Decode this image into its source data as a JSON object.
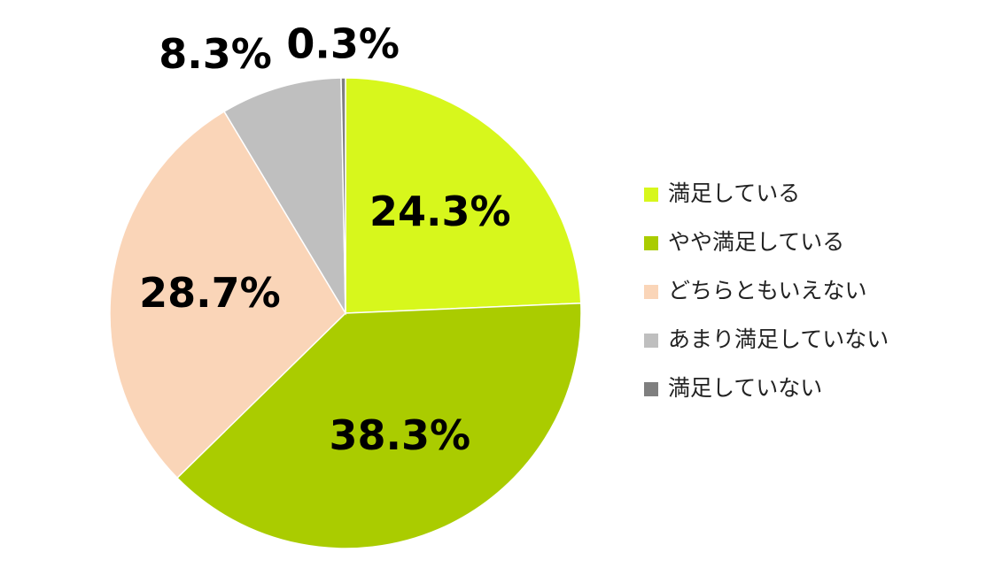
{
  "chart_data": {
    "type": "pie",
    "categories": [
      "満足している",
      "やや満足している",
      "どちらともいえない",
      "あまり満足していない",
      "満足していない"
    ],
    "values": [
      24.3,
      38.3,
      28.7,
      8.3,
      0.3
    ],
    "value_labels": [
      "24.3%",
      "38.3%",
      "28.7%",
      "8.3%",
      "0.3%"
    ],
    "colors": [
      "#d7f71c",
      "#aacc00",
      "#fad5b8",
      "#bfbfbf",
      "#7f7f7f"
    ],
    "legend": "right"
  }
}
